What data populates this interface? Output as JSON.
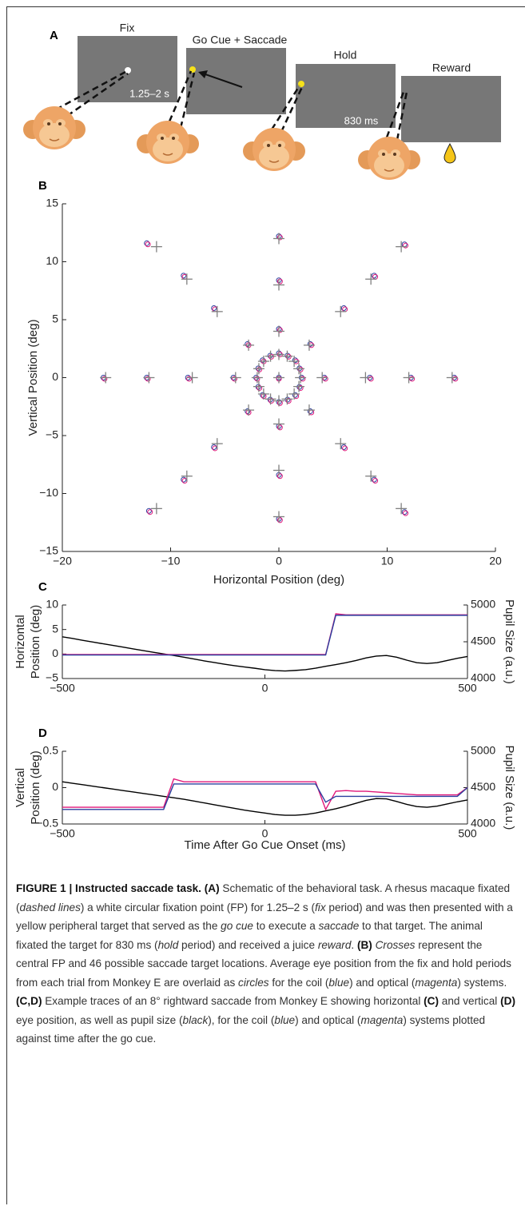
{
  "panel_a": {
    "letter": "A",
    "fix": "Fix",
    "fix_time": "1.25–2 s",
    "go": "Go Cue + Saccade",
    "hold": "Hold",
    "hold_time": "830 ms",
    "reward": "Reward"
  },
  "chart_data": [
    {
      "type": "scatter",
      "panel": "B",
      "xlabel": "Horizontal Position (deg)",
      "ylabel": "Vertical Position (deg)",
      "xlim": [
        -20,
        20
      ],
      "ylim": [
        -15,
        15
      ],
      "xticks": [
        {
          "value": -20,
          "label": "−20"
        },
        {
          "value": -10,
          "label": "−10"
        },
        0,
        10,
        20
      ],
      "yticks": [
        {
          "value": -15,
          "label": "−15"
        },
        {
          "value": -10,
          "label": "−10"
        },
        {
          "value": -5,
          "label": "−5"
        },
        0,
        5,
        10,
        15
      ],
      "series": [
        {
          "marker": "circle",
          "color": "#2b3f9e",
          "x": [
            0,
            2.1,
            1.9,
            1.5,
            0.8,
            0,
            -0.8,
            -1.5,
            -1.9,
            -2.1,
            -1.9,
            -1.5,
            -0.8,
            0,
            0.8,
            1.5,
            1.9,
            4.2,
            2.9,
            0,
            -2.9,
            -4.2,
            -2.9,
            0,
            2.9,
            8.4,
            6,
            0,
            -6,
            -8.4,
            -6,
            0,
            6,
            12.2,
            8.8,
            0,
            -8.8,
            -12.2,
            -8.8,
            0,
            8.8,
            16.2,
            11.6,
            -12.2,
            -16.2,
            -12,
            11.6
          ],
          "values": [
            0,
            0,
            0.8,
            1.5,
            1.9,
            2.1,
            1.9,
            1.5,
            0.8,
            0,
            -0.8,
            -1.5,
            -1.9,
            -2.1,
            -1.9,
            -1.5,
            -0.8,
            0,
            2.9,
            4.2,
            2.9,
            0,
            -2.9,
            -4.2,
            -2.9,
            0,
            6,
            8.4,
            6,
            0,
            -6,
            -8.4,
            -6,
            0,
            8.8,
            12.2,
            8.8,
            0,
            -8.8,
            -12.2,
            -8.8,
            0,
            11.5,
            11.6,
            0,
            -11.5,
            -11.6
          ]
        },
        {
          "marker": "circle",
          "color": "#e0187a",
          "x": [
            0,
            2.2,
            2,
            1.6,
            0.9,
            0.1,
            -0.7,
            -1.4,
            -1.8,
            -2,
            -1.8,
            -1.4,
            -0.7,
            0.1,
            0.9,
            1.6,
            2,
            4.3,
            3,
            0.1,
            -2.8,
            -4.1,
            -2.8,
            0.1,
            3,
            8.5,
            6.1,
            0.1,
            -5.9,
            -8.3,
            -5.9,
            0.1,
            6.1,
            12.3,
            8.9,
            0.1,
            -8.7,
            -12.1,
            -8.7,
            0.1,
            8.9,
            16.3,
            11.7,
            -12.1,
            -16.1,
            -11.9,
            11.7
          ],
          "values": [
            -0.1,
            -0.1,
            0.7,
            1.4,
            1.8,
            2,
            1.8,
            1.4,
            0.7,
            -0.1,
            -0.9,
            -1.6,
            -2,
            -2.2,
            -2,
            -1.6,
            -0.9,
            -0.1,
            2.8,
            4.1,
            2.8,
            -0.1,
            -3,
            -4.3,
            -3,
            -0.1,
            5.9,
            8.3,
            5.9,
            -0.1,
            -6.1,
            -8.5,
            -6.1,
            -0.1,
            8.7,
            12.1,
            8.7,
            -0.1,
            -8.9,
            -12.3,
            -8.9,
            -0.1,
            11.4,
            11.5,
            -0.1,
            -11.6,
            -11.7
          ]
        },
        {
          "marker": "cross",
          "color": "#808080",
          "x": [
            0,
            2,
            1.85,
            1.41,
            0.77,
            0,
            -0.77,
            -1.41,
            -1.85,
            -2,
            -1.85,
            -1.41,
            -0.77,
            0,
            0.77,
            1.41,
            1.85,
            4,
            2.8,
            0,
            -2.8,
            -4,
            -2.8,
            0,
            2.8,
            8,
            5.7,
            0,
            -5.7,
            -8,
            -5.7,
            0,
            5.7,
            12,
            8.5,
            0,
            -8.5,
            -12,
            -8.5,
            0,
            8.5,
            16,
            11.3,
            -11.3,
            -16,
            -11.3,
            11.3
          ],
          "values": [
            0,
            0,
            0.77,
            1.41,
            1.85,
            2,
            1.85,
            1.41,
            0.77,
            0,
            -0.77,
            -1.41,
            -1.85,
            -2,
            -1.85,
            -1.41,
            -0.77,
            0,
            2.8,
            4,
            2.8,
            0,
            -2.8,
            -4,
            -2.8,
            0,
            5.7,
            8,
            5.7,
            0,
            -5.7,
            -8,
            -5.7,
            0,
            8.5,
            12,
            8.5,
            0,
            -8.5,
            -12,
            -8.5,
            0,
            11.3,
            11.3,
            0,
            -11.3,
            -11.3
          ]
        }
      ]
    },
    {
      "type": "line",
      "panel": "C",
      "ylabel": [
        "Horizontal",
        "Position (deg)"
      ],
      "y2label": "Pupil Size (a.u.)",
      "xlim": [
        -500,
        500
      ],
      "ylim": [
        -5,
        10
      ],
      "y2lim": [
        4000,
        5000
      ],
      "xticks": [
        {
          "value": -500,
          "label": "−500"
        },
        0,
        500
      ],
      "yticks": [
        {
          "value": -5,
          "label": "−5"
        },
        0,
        5,
        10
      ],
      "y2ticks": [
        4000,
        4500,
        5000
      ],
      "x": [
        -500,
        -475,
        -450,
        -425,
        -400,
        -375,
        -350,
        -325,
        -300,
        -275,
        -250,
        -225,
        -200,
        -175,
        -150,
        -125,
        -100,
        -75,
        -50,
        -25,
        0,
        25,
        50,
        75,
        100,
        125,
        150,
        175,
        200,
        225,
        250,
        275,
        300,
        325,
        350,
        375,
        400,
        425,
        450,
        475,
        500
      ],
      "series": [
        {
          "color": "#000000",
          "axis": "y2",
          "values": [
            4567,
            4545,
            4520,
            4497,
            4473,
            4450,
            4427,
            4403,
            4380,
            4357,
            4335,
            4313,
            4290,
            4265,
            4240,
            4218,
            4195,
            4175,
            4157,
            4140,
            4120,
            4108,
            4103,
            4110,
            4120,
            4140,
            4167,
            4190,
            4215,
            4245,
            4280,
            4305,
            4313,
            4290,
            4250,
            4215,
            4205,
            4215,
            4245,
            4275,
            4300
          ]
        },
        {
          "color": "#e0187a",
          "values": [
            -0.1,
            -0.1,
            -0.1,
            -0.1,
            -0.1,
            -0.1,
            -0.1,
            -0.1,
            -0.1,
            -0.1,
            -0.1,
            -0.1,
            -0.1,
            -0.1,
            -0.1,
            -0.1,
            -0.1,
            -0.1,
            -0.1,
            -0.1,
            -0.1,
            -0.1,
            -0.1,
            -0.1,
            -0.1,
            -0.1,
            -0.1,
            8.2,
            8,
            8,
            8,
            8,
            8,
            8,
            8,
            8,
            8,
            8,
            8,
            8,
            8
          ]
        },
        {
          "color": "#2b3f9e",
          "values": [
            -0.2,
            -0.2,
            -0.2,
            -0.2,
            -0.2,
            -0.2,
            -0.2,
            -0.2,
            -0.2,
            -0.2,
            -0.2,
            -0.2,
            -0.2,
            -0.2,
            -0.2,
            -0.2,
            -0.2,
            -0.2,
            -0.2,
            -0.2,
            -0.2,
            -0.2,
            -0.2,
            -0.2,
            -0.2,
            -0.2,
            -0.2,
            7.9,
            7.9,
            7.9,
            7.9,
            7.9,
            7.9,
            7.9,
            7.9,
            7.9,
            7.9,
            7.9,
            7.9,
            7.9,
            7.9
          ]
        }
      ]
    },
    {
      "type": "line",
      "panel": "D",
      "xlabel": "Time After Go Cue Onset (ms)",
      "ylabel": [
        "Vertical",
        "Position (deg)"
      ],
      "y2label": "Pupil Size (a.u.)",
      "xlim": [
        -500,
        500
      ],
      "ylim": [
        -0.5,
        0.5
      ],
      "y2lim": [
        4000,
        5000
      ],
      "xticks": [
        {
          "value": -500,
          "label": "−500"
        },
        0,
        500
      ],
      "yticks": [
        {
          "value": -0.5,
          "label": "−0.5"
        },
        0,
        0.5
      ],
      "y2ticks": [
        4000,
        4500,
        5000
      ],
      "x": [
        -500,
        -475,
        -450,
        -425,
        -400,
        -375,
        -350,
        -325,
        -300,
        -275,
        -250,
        -225,
        -200,
        -175,
        -150,
        -125,
        -100,
        -75,
        -50,
        -25,
        0,
        25,
        50,
        75,
        100,
        125,
        150,
        175,
        200,
        225,
        250,
        275,
        300,
        325,
        350,
        375,
        400,
        425,
        450,
        475,
        500
      ],
      "series": [
        {
          "color": "#000000",
          "axis": "y2",
          "values": [
            4580,
            4560,
            4540,
            4520,
            4500,
            4480,
            4460,
            4440,
            4420,
            4400,
            4380,
            4360,
            4340,
            4315,
            4290,
            4265,
            4240,
            4215,
            4190,
            4170,
            4150,
            4130,
            4120,
            4120,
            4130,
            4150,
            4180,
            4210,
            4245,
            4285,
            4325,
            4350,
            4345,
            4310,
            4270,
            4240,
            4230,
            4245,
            4275,
            4305,
            4330
          ]
        },
        {
          "color": "#e0187a",
          "values": [
            -0.27,
            -0.27,
            -0.27,
            -0.27,
            -0.27,
            -0.27,
            -0.27,
            -0.27,
            -0.27,
            -0.27,
            -0.27,
            0.12,
            0.08,
            0.08,
            0.08,
            0.08,
            0.08,
            0.08,
            0.08,
            0.08,
            0.08,
            0.08,
            0.08,
            0.08,
            0.08,
            0.08,
            -0.3,
            -0.05,
            -0.04,
            -0.05,
            -0.05,
            -0.06,
            -0.07,
            -0.08,
            -0.09,
            -0.1,
            -0.1,
            -0.1,
            -0.1,
            -0.1,
            0
          ]
        },
        {
          "color": "#2b3f9e",
          "values": [
            -0.3,
            -0.3,
            -0.3,
            -0.3,
            -0.3,
            -0.3,
            -0.3,
            -0.3,
            -0.3,
            -0.3,
            -0.3,
            0.05,
            0.05,
            0.05,
            0.05,
            0.05,
            0.05,
            0.05,
            0.05,
            0.05,
            0.05,
            0.05,
            0.05,
            0.05,
            0.05,
            0.05,
            -0.2,
            -0.12,
            -0.12,
            -0.12,
            -0.12,
            -0.12,
            -0.12,
            -0.12,
            -0.12,
            -0.12,
            -0.12,
            -0.12,
            -0.12,
            -0.12,
            0
          ]
        }
      ]
    }
  ],
  "caption": [
    {
      "style": "bold",
      "text": "FIGURE 1 | Instructed saccade task. (A)"
    },
    {
      "style": "plain",
      "text": " Schematic of the behavioral task. A rhesus macaque fixated ("
    },
    {
      "style": "italic",
      "text": "dashed lines"
    },
    {
      "style": "plain",
      "text": ") a white circular fixation point (FP) for 1.25–2 s ("
    },
    {
      "style": "italic",
      "text": "fix"
    },
    {
      "style": "plain",
      "text": " period) and was then presented with a yellow peripheral target that served as the "
    },
    {
      "style": "italic",
      "text": "go cue"
    },
    {
      "style": "plain",
      "text": " to execute a "
    },
    {
      "style": "italic",
      "text": "saccade"
    },
    {
      "style": "plain",
      "text": " to that target. The animal fixated the target for 830 ms ("
    },
    {
      "style": "italic",
      "text": "hold"
    },
    {
      "style": "plain",
      "text": " period) and received a juice "
    },
    {
      "style": "italic",
      "text": "reward"
    },
    {
      "style": "plain",
      "text": ". "
    },
    {
      "style": "bold",
      "text": "(B) "
    },
    {
      "style": "italic",
      "text": "Crosses"
    },
    {
      "style": "plain",
      "text": " represent the central FP and 46 possible saccade target locations. Average eye position from the fix and hold periods from each trial from Monkey E are overlaid as "
    },
    {
      "style": "italic",
      "text": "circles"
    },
    {
      "style": "plain",
      "text": " for the coil ("
    },
    {
      "style": "italic",
      "text": "blue"
    },
    {
      "style": "plain",
      "text": ") and optical ("
    },
    {
      "style": "italic",
      "text": "magenta"
    },
    {
      "style": "plain",
      "text": ") systems. "
    },
    {
      "style": "bold",
      "text": "(C,D)"
    },
    {
      "style": "plain",
      "text": " Example traces of an 8° rightward saccade from Monkey E showing horizontal "
    },
    {
      "style": "bold",
      "text": "(C)"
    },
    {
      "style": "plain",
      "text": " and vertical "
    },
    {
      "style": "bold",
      "text": "(D)"
    },
    {
      "style": "plain",
      "text": " eye position, as well as pupil size ("
    },
    {
      "style": "italic",
      "text": "black"
    },
    {
      "style": "plain",
      "text": "), for the coil ("
    },
    {
      "style": "italic",
      "text": "blue"
    },
    {
      "style": "plain",
      "text": ") and optical ("
    },
    {
      "style": "italic",
      "text": "magenta"
    },
    {
      "style": "plain",
      "text": ") systems plotted against time after the go cue."
    }
  ]
}
